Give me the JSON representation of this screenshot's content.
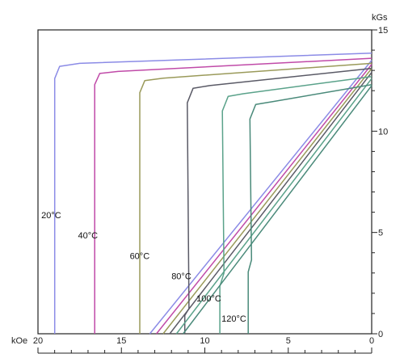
{
  "chart_data": {
    "type": "line",
    "title": "",
    "x_unit": "kOe",
    "y_unit": "kGs",
    "x_direction": "reversed",
    "xlim": [
      20,
      0
    ],
    "ylim": [
      0,
      15
    ],
    "x_ticks": [
      {
        "value": 20,
        "label": "20"
      },
      {
        "value": 15,
        "label": "15"
      },
      {
        "value": 10,
        "label": "10"
      },
      {
        "value": 5,
        "label": "5"
      },
      {
        "value": 0,
        "label": "0"
      }
    ],
    "y_ticks": [
      {
        "value": 0,
        "label": "0"
      },
      {
        "value": 5,
        "label": "5"
      },
      {
        "value": 10,
        "label": "10"
      },
      {
        "value": 15,
        "label": "15"
      }
    ],
    "grid": false,
    "series": [
      {
        "name": "20°C",
        "color": "#8b8be6",
        "demag": [
          [
            19.0,
            0
          ],
          [
            19.0,
            12.6
          ],
          [
            18.7,
            13.2
          ],
          [
            17.5,
            13.35
          ],
          [
            0,
            13.85
          ]
        ],
        "recoil": [
          [
            13.3,
            0
          ],
          [
            0,
            13.5
          ]
        ]
      },
      {
        "name": "40°C",
        "color": "#c04aa8",
        "demag": [
          [
            16.6,
            0
          ],
          [
            16.6,
            12.3
          ],
          [
            16.3,
            12.85
          ],
          [
            15.2,
            12.95
          ],
          [
            0,
            13.6
          ]
        ],
        "recoil": [
          [
            12.9,
            0
          ],
          [
            0,
            13.3
          ]
        ]
      },
      {
        "name": "60°C",
        "color": "#9a9a5a",
        "demag": [
          [
            13.9,
            0
          ],
          [
            13.9,
            11.9
          ],
          [
            13.6,
            12.5
          ],
          [
            12.5,
            12.62
          ],
          [
            0,
            13.35
          ]
        ],
        "recoil": [
          [
            12.5,
            0
          ],
          [
            0,
            13.1
          ]
        ]
      },
      {
        "name": "80°C",
        "color": "#5a5a66",
        "demag": [
          [
            11.2,
            0
          ],
          [
            11.2,
            0.9
          ],
          [
            10.95,
            1.25
          ],
          [
            11.05,
            11.4
          ],
          [
            10.7,
            12.12
          ],
          [
            9.7,
            12.25
          ],
          [
            0,
            13.1
          ]
        ],
        "recoil": [
          [
            12.1,
            0
          ],
          [
            0,
            12.9
          ]
        ]
      },
      {
        "name": "100°C",
        "color": "#5aa28a",
        "demag": [
          [
            9.1,
            0
          ],
          [
            9.1,
            2.35
          ],
          [
            8.85,
            3.0
          ],
          [
            8.95,
            11.0
          ],
          [
            8.6,
            11.72
          ],
          [
            7.7,
            11.85
          ],
          [
            0,
            12.7
          ]
        ],
        "recoil": [
          [
            11.7,
            0
          ],
          [
            0,
            12.6
          ]
        ]
      },
      {
        "name": "120°C",
        "color": "#4a8a7a",
        "demag": [
          [
            7.4,
            0
          ],
          [
            7.4,
            3.05
          ],
          [
            7.2,
            3.65
          ],
          [
            7.3,
            10.6
          ],
          [
            6.95,
            11.32
          ],
          [
            6.0,
            11.45
          ],
          [
            0,
            12.3
          ]
        ],
        "recoil": [
          [
            11.3,
            0
          ],
          [
            0,
            12.25
          ]
        ]
      }
    ],
    "annotations": [
      {
        "text": "20°C",
        "x": 19.8,
        "y": 5.7
      },
      {
        "text": "40°C",
        "x": 17.6,
        "y": 4.7
      },
      {
        "text": "60°C",
        "x": 14.5,
        "y": 3.7
      },
      {
        "text": "80°C",
        "x": 12.0,
        "y": 2.7
      },
      {
        "text": "100°C",
        "x": 10.5,
        "y": 1.6
      },
      {
        "text": "120°C",
        "x": 9.0,
        "y": 0.6
      }
    ]
  }
}
